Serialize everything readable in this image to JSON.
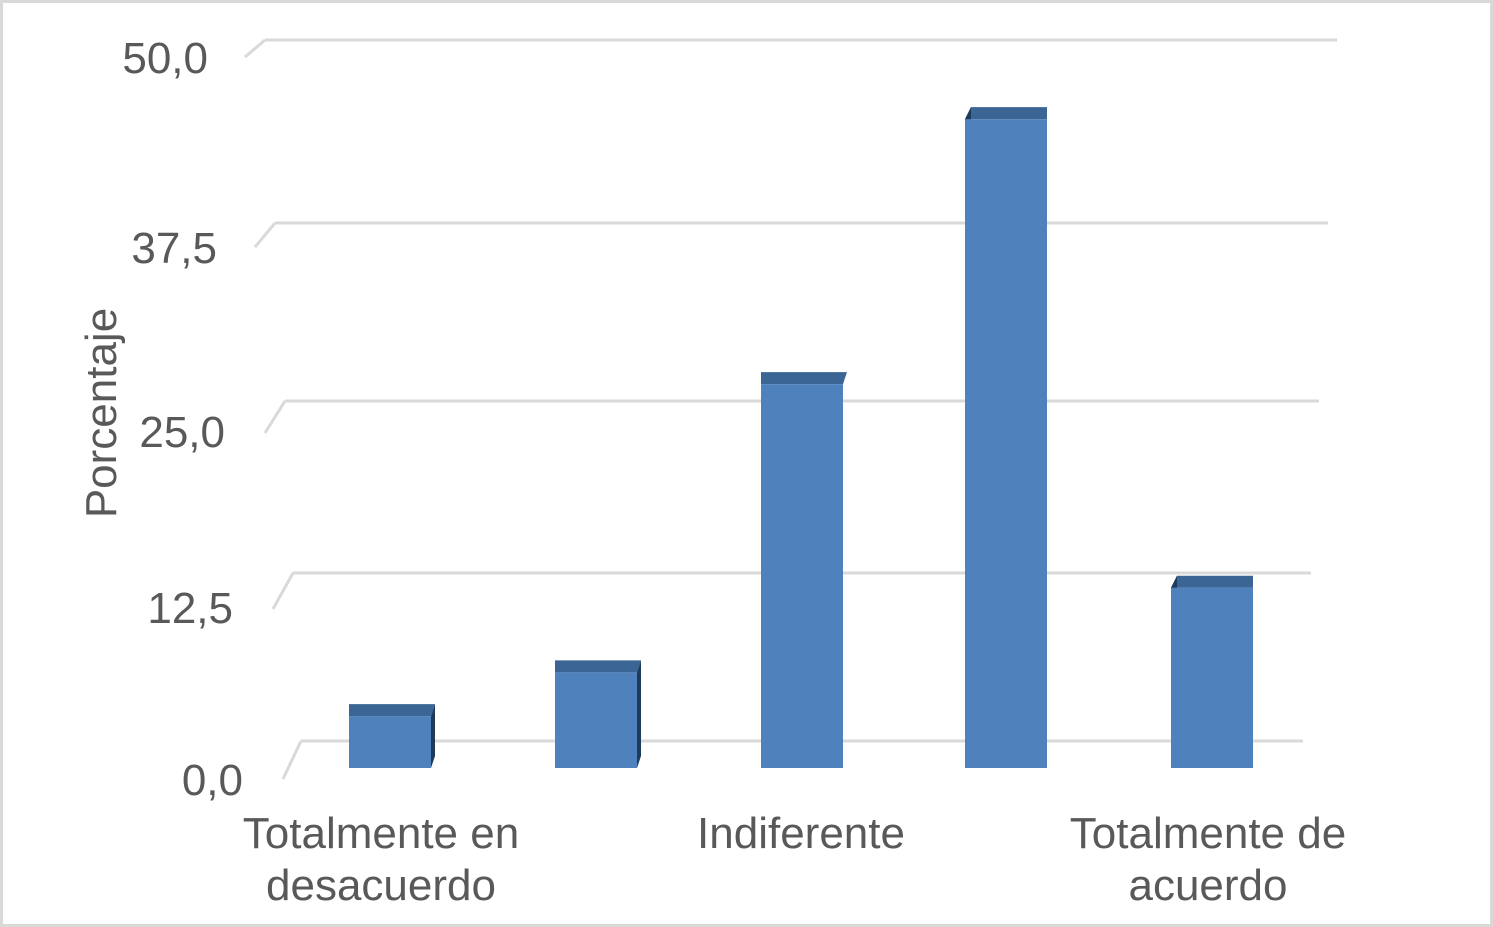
{
  "chart_data": {
    "type": "bar",
    "title": "",
    "xlabel": "",
    "ylabel": "Porcentaje",
    "ylim": [
      0,
      50
    ],
    "yticks": [
      "0,0",
      "12,5",
      "25,0",
      "37,5",
      "50,0"
    ],
    "categories": [
      "Totalmente en desacuerdo",
      "",
      "Indiferente",
      "",
      "Totalmente de acuerdo"
    ],
    "category_label_lines": [
      [
        "Totalmente en",
        "desacuerdo"
      ],
      [],
      [
        "Indiferente"
      ],
      [],
      [
        "Totalmente de",
        "acuerdo"
      ]
    ],
    "values": [
      3.8,
      7.0,
      28.1,
      47.5,
      13.2
    ],
    "grid": true,
    "legend": "none",
    "colors": {
      "bar_front": "#4f81bd",
      "bar_top": "#3a6595",
      "bar_side": "#1f3b5c",
      "grid": "#d9d9d9",
      "text": "#595959"
    }
  }
}
